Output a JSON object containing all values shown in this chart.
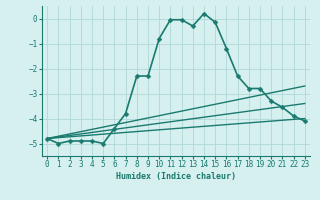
{
  "xlabel": "Humidex (Indice chaleur)",
  "ylabel": "",
  "background_color": "#d6f0f0",
  "grid_color": "#b0d8d8",
  "line_color": "#1a7a6e",
  "xlim": [
    -0.5,
    23.5
  ],
  "ylim": [
    -5.5,
    0.5
  ],
  "yticks": [
    0,
    -1,
    -2,
    -3,
    -4,
    -5
  ],
  "xticks": [
    0,
    1,
    2,
    3,
    4,
    5,
    6,
    7,
    8,
    9,
    10,
    11,
    12,
    13,
    14,
    15,
    16,
    17,
    18,
    19,
    20,
    21,
    22,
    23
  ],
  "series": [
    {
      "x": [
        0,
        1,
        2,
        3,
        4,
        5,
        6,
        7,
        8,
        9,
        10,
        11,
        12,
        13,
        14,
        15,
        16,
        17,
        18,
        19,
        20,
        21,
        22,
        23
      ],
      "y": [
        -4.8,
        -5.0,
        -4.9,
        -4.9,
        -4.9,
        -5.0,
        -4.4,
        -3.8,
        -2.3,
        -2.3,
        -0.8,
        -0.05,
        -0.05,
        -0.3,
        0.2,
        -0.15,
        -1.2,
        -2.3,
        -2.8,
        -2.8,
        -3.3,
        -3.55,
        -3.9,
        -4.1
      ],
      "marker": "D",
      "markersize": 2.5,
      "linewidth": 1.2
    },
    {
      "x": [
        0,
        23
      ],
      "y": [
        -4.8,
        -2.7
      ],
      "marker": null,
      "linewidth": 1.0
    },
    {
      "x": [
        0,
        23
      ],
      "y": [
        -4.8,
        -3.4
      ],
      "marker": null,
      "linewidth": 1.0
    },
    {
      "x": [
        0,
        23
      ],
      "y": [
        -4.8,
        -4.0
      ],
      "marker": null,
      "linewidth": 1.0
    }
  ]
}
